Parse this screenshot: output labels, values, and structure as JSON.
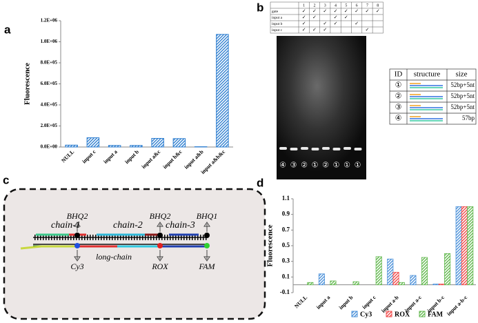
{
  "chart_data": [
    {
      "type": "bar",
      "panel_label": "a",
      "y_label": "Fluorescence",
      "categories": [
        "NULL",
        "input c",
        "input a",
        "input b",
        "input a&c",
        "input b&c",
        "input a&b",
        "input a&b&c"
      ],
      "values": [
        18000,
        88000,
        15000,
        15000,
        82000,
        80000,
        3000,
        1070000
      ],
      "color": "#2f7fd0",
      "hatch": true,
      "ylim": [
        0,
        1200000
      ],
      "yticks": [
        {
          "value": 0,
          "label": "0.0E+00"
        },
        {
          "value": 200000,
          "label": "2.0E+05"
        },
        {
          "value": 400000,
          "label": "4.0E+05"
        },
        {
          "value": 600000,
          "label": "6.0E+05"
        },
        {
          "value": 800000,
          "label": "8.0E+05"
        },
        {
          "value": 1000000,
          "label": "1.0E+06"
        },
        {
          "value": 1200000,
          "label": "1.2E+06"
        }
      ],
      "grid": false
    },
    {
      "type": "grouped_bar",
      "panel_label": "d",
      "y_label": "Fluorescence",
      "categories": [
        "NULL",
        "input a",
        "input b",
        "input c",
        "input a-b",
        "input a-c",
        "input b-c",
        "input a-b-c"
      ],
      "series": [
        {
          "name": "Cy3",
          "color": "#4a90d9",
          "values": [
            0,
            0.14,
            0,
            0,
            0.33,
            0.12,
            0.01,
            1.0
          ]
        },
        {
          "name": "ROX",
          "color": "#f04848",
          "values": [
            0,
            0,
            0,
            0,
            0.16,
            0,
            0.01,
            1.0
          ]
        },
        {
          "name": "FAM",
          "color": "#62b84e",
          "values": [
            0.03,
            0.05,
            0.04,
            0.36,
            0.03,
            0.35,
            0.4,
            1.0
          ]
        }
      ],
      "hatch": true,
      "ylim": [
        -0.1,
        1.1
      ],
      "yticks": [
        -0.1,
        0.1,
        0.3,
        0.5,
        0.7,
        0.9,
        1.1
      ],
      "legend": "bottom",
      "grid": false
    }
  ],
  "gel": {
    "panel_label": "b",
    "check_mark": "✓",
    "columns": [
      1,
      2,
      3,
      4,
      5,
      6,
      7,
      8
    ],
    "rows": [
      {
        "label": "gate",
        "checked": [
          1,
          2,
          3,
          4,
          5,
          6,
          7,
          8
        ]
      },
      {
        "label": "input a",
        "checked": [
          1,
          2,
          4,
          5
        ]
      },
      {
        "label": "input b",
        "checked": [
          1,
          3,
          4,
          6
        ]
      },
      {
        "label": "input c",
        "checked": [
          1,
          2,
          3,
          7
        ]
      }
    ],
    "lane_labels": [
      "④",
      "③",
      "②",
      "①",
      "②",
      "①",
      "①",
      "①"
    ],
    "table_headers": [
      "ID",
      "structure",
      "size"
    ],
    "table_rows": [
      {
        "id": "①",
        "size": "52bp+5nt"
      },
      {
        "id": "②",
        "size": "52bp+5nt"
      },
      {
        "id": "③",
        "size": "52bp+5nt"
      },
      {
        "id": "④",
        "size": "57bp"
      }
    ]
  },
  "diagram": {
    "panel_label": "c",
    "chains": [
      "chain-1",
      "chain-2",
      "chain-3"
    ],
    "quenchers": [
      "BHQ2",
      "BHQ2",
      "BHQ1"
    ],
    "fluorophores": [
      "Cy3",
      "ROX",
      "FAM"
    ],
    "long_chain": "long-chain"
  }
}
